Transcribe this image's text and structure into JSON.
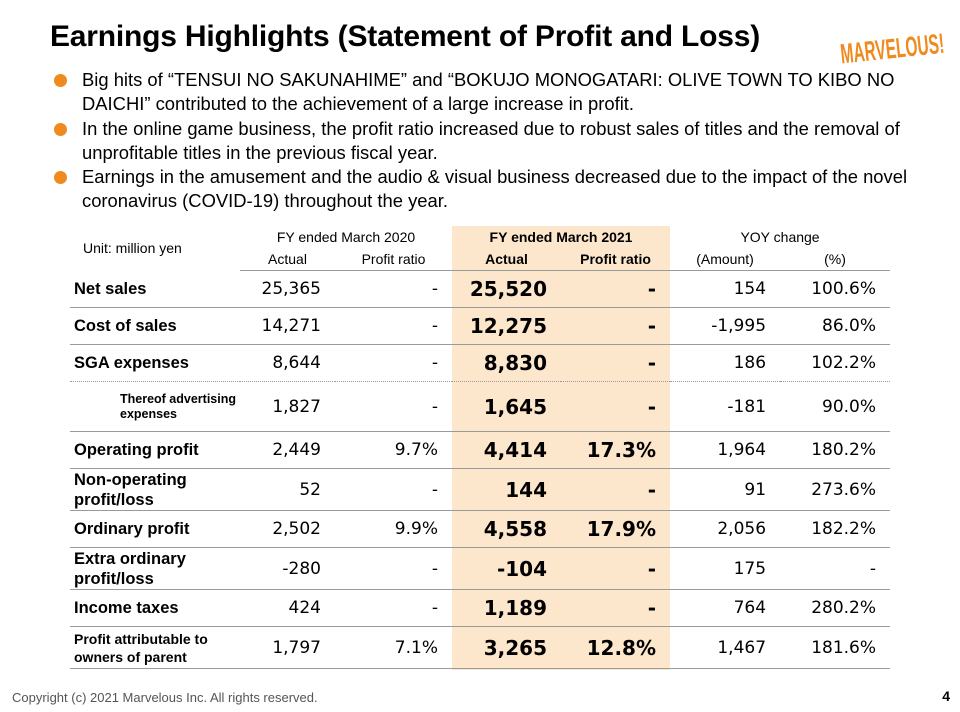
{
  "title": "Earnings Highlights (Statement of Profit and Loss)",
  "logo": {
    "text": "MARVELOUS!",
    "color": "#ef8a1f"
  },
  "bullets": [
    "Big hits of “TENSUI NO SAKUNAHIME” and “BOKUJO MONOGATARI: OLIVE TOWN TO KIBO NO DAICHI” contributed to the achievement of a large increase in profit.",
    "In the online game business, the profit ratio increased due to robust sales of titles and the removal of unprofitable titles in the previous fiscal year.",
    "Earnings in the amusement and the audio & visual business decreased due to the impact of the novel coronavirus (COVID-19) throughout the year."
  ],
  "table": {
    "unit": "Unit: million yen",
    "groups": [
      "FY ended March 2020",
      "FY ended March 2021",
      "YOY change"
    ],
    "subheaders": [
      "Actual",
      "Profit ratio",
      "Actual",
      "Profit ratio",
      "(Amount)",
      "(%)"
    ],
    "rows": [
      {
        "label": "Net sales",
        "v": [
          "25,365",
          "-",
          "25,520",
          "-",
          "154",
          "100.6%"
        ]
      },
      {
        "label": "Cost of sales",
        "v": [
          "14,271",
          "-",
          "12,275",
          "-",
          "-1,995",
          "86.0%"
        ]
      },
      {
        "label": "SGA expenses",
        "v": [
          "8,644",
          "-",
          "8,830",
          "-",
          "186",
          "102.2%"
        ]
      },
      {
        "label": "Thereof advertising expenses",
        "v": [
          "1,827",
          "-",
          "1,645",
          "-",
          "-181",
          "90.0%"
        ]
      },
      {
        "label": "Operating profit",
        "v": [
          "2,449",
          "9.7%",
          "4,414",
          "17.3%",
          "1,964",
          "180.2%"
        ]
      },
      {
        "label": "Non-operating profit/loss",
        "v": [
          "52",
          "-",
          "144",
          "-",
          "91",
          "273.6%"
        ]
      },
      {
        "label": "Ordinary profit",
        "v": [
          "2,502",
          "9.9%",
          "4,558",
          "17.9%",
          "2,056",
          "182.2%"
        ]
      },
      {
        "label": "Extra ordinary profit/loss",
        "v": [
          "-280",
          "-",
          "-104",
          "-",
          "175",
          "-"
        ]
      },
      {
        "label": "Income taxes",
        "v": [
          "424",
          "-",
          "1,189",
          "-",
          "764",
          "280.2%"
        ]
      },
      {
        "label": "Profit attributable to owners of parent",
        "v": [
          "1,797",
          "7.1%",
          "3,265",
          "12.8%",
          "1,467",
          "181.6%"
        ]
      }
    ]
  },
  "colors": {
    "bullet": "#ef8a1f",
    "highlight": "#fce6cc"
  },
  "footer": "Copyright (c) 2021 Marvelous Inc. All rights reserved.",
  "page_number": "4"
}
